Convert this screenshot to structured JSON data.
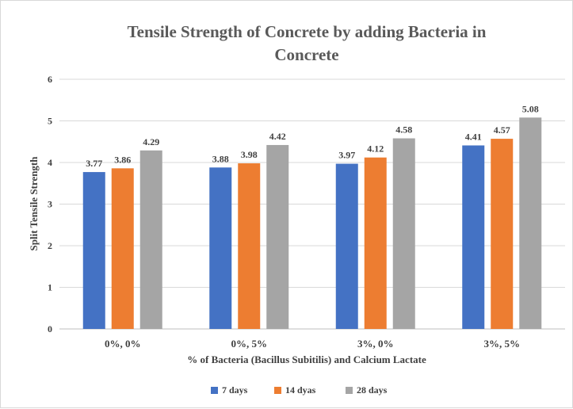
{
  "chart_data": {
    "type": "bar",
    "title_lines": [
      "Tensile Strength of Concrete by adding Bacteria in",
      "Concrete"
    ],
    "xlabel": "% of Bacteria (Bacillus Subitilis) and Calcium Lactate",
    "ylabel": "Split Tensile Strength",
    "ylim": [
      0,
      6
    ],
    "yticks": [
      "0",
      "1",
      "2",
      "3",
      "4",
      "5",
      "6"
    ],
    "categories": [
      "0%, 0%",
      "0%, 5%",
      "3%, 0%",
      "3%, 5%"
    ],
    "series": [
      {
        "name": "7 days",
        "color": "#4472c4",
        "values": [
          3.77,
          3.88,
          3.97,
          4.41
        ],
        "labels": [
          "3.77",
          "3.88",
          "3.97",
          "4.41"
        ]
      },
      {
        "name": "14 dyas",
        "color": "#ed7d31",
        "values": [
          3.86,
          3.98,
          4.12,
          4.57
        ],
        "labels": [
          "3.86",
          "3.98",
          "4.12",
          "4.57"
        ]
      },
      {
        "name": "28 days",
        "color": "#a5a5a5",
        "values": [
          4.29,
          4.42,
          4.58,
          5.08
        ],
        "labels": [
          "4.29",
          "4.42",
          "4.58",
          "5.08"
        ]
      }
    ],
    "grid": true,
    "legend_position": "bottom"
  }
}
